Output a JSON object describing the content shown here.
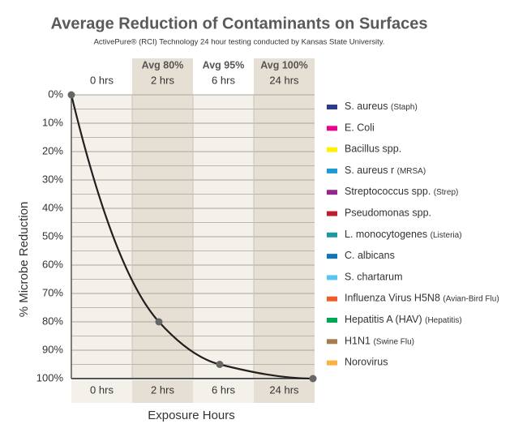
{
  "chart_data": {
    "type": "line",
    "title": "Average Reduction of Contaminants on Surfaces",
    "subtitle": "ActivePure® (RCI) Technology 24 hour testing conducted by Kansas State University.",
    "x_label": "Exposure Hours",
    "y_label": "% Microbe Reduction",
    "categories": [
      "0 hrs",
      "2 hrs",
      "6 hrs",
      "24 hrs"
    ],
    "values": [
      0,
      80,
      95,
      100
    ],
    "value_labels": [
      null,
      "Avg 80%",
      "Avg 95%",
      "Avg 100%"
    ],
    "color": "#231f20",
    "ylim": [
      0,
      100
    ],
    "y_inverted": true,
    "yticks": [
      {
        "value": 0,
        "label": "0%"
      },
      {
        "value": 10,
        "label": "10%"
      },
      {
        "value": 20,
        "label": "20%"
      },
      {
        "value": 30,
        "label": "30%"
      },
      {
        "value": 40,
        "label": "40%"
      },
      {
        "value": 50,
        "label": "50%"
      },
      {
        "value": 60,
        "label": "60%"
      },
      {
        "value": 70,
        "label": "70%"
      },
      {
        "value": 80,
        "label": "80%"
      },
      {
        "value": 90,
        "label": "90%"
      },
      {
        "value": 100,
        "label": "100%"
      }
    ],
    "minor_grid": [
      5,
      15,
      25,
      35,
      45,
      55,
      65,
      75,
      85,
      95
    ],
    "grid": true,
    "legend": [
      {
        "name": "S. aureus (Staph)",
        "color": "#2b3990"
      },
      {
        "name": "E. Coli",
        "color": "#ec008c"
      },
      {
        "name": "Bacillus spp.",
        "color": "#fff200"
      },
      {
        "name": "S. aureus r (MRSA)",
        "color": "#1c9ad6"
      },
      {
        "name": "Streptococcus spp. (Strep)",
        "color": "#92278f"
      },
      {
        "name": "Pseudomonas spp.",
        "color": "#be1e2d"
      },
      {
        "name": "L. monocytogenes (Listeria)",
        "color": "#1a9aa0"
      },
      {
        "name": "C. albicans",
        "color": "#0e76bc"
      },
      {
        "name": "S. chartarum",
        "color": "#5bc5f2"
      },
      {
        "name": "Influenza Virus H5N8 (Avian-Bird Flu)",
        "color": "#f15a29"
      },
      {
        "name": "Hepatitis A (HAV) (Hepatitis)",
        "color": "#00a651"
      },
      {
        "name": "H1N1 (Swine Flu)",
        "color": "#a97c50"
      },
      {
        "name": "Norovirus",
        "color": "#fbb040"
      }
    ]
  }
}
